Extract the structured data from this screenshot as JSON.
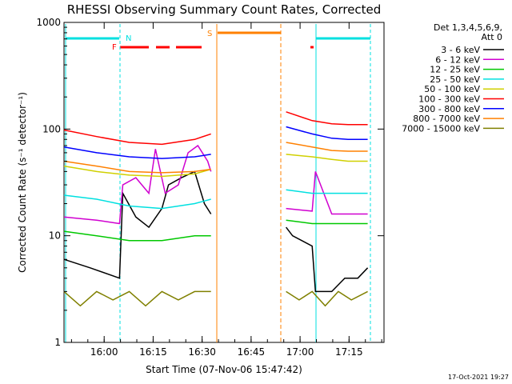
{
  "chart_data": {
    "type": "line",
    "title": "RHESSI Observing Summary Count Rates, Corrected",
    "xlabel": "Start Time (07-Nov-06 15:47:42)",
    "ylabel": "Corrected Count Rate (s⁻¹ detector⁻¹)",
    "y_scale": "log",
    "ylim": [
      1,
      1000
    ],
    "xlim_minutes_after_start": [
      0,
      98
    ],
    "x_tick_labels": [
      "16:00",
      "16:15",
      "16:30",
      "16:45",
      "17:00",
      "17:15"
    ],
    "y_tick_labels": [
      "1",
      "10",
      "100",
      "1000"
    ],
    "legend_header": [
      "Det 1,3,4,5,6,9,",
      "Att 0"
    ],
    "legend_position": "right",
    "timestamp": "17-Oct-2021 19:27",
    "markers": {
      "night_label": "N",
      "flare_label": "F",
      "saa_label": "S"
    },
    "series": [
      {
        "name": "3 - 6 keV",
        "color": "#000000",
        "segments": [
          {
            "x": [
              0,
              8,
              17,
              18,
              22,
              26,
              30,
              32,
              36,
              40,
              43,
              45
            ],
            "y": [
              6,
              5,
              4,
              25,
              15,
              12,
              18,
              30,
              35,
              40,
              20,
              16
            ]
          },
          {
            "x": [
              68,
              70,
              76,
              77,
              82,
              86,
              90,
              93
            ],
            "y": [
              12,
              10,
              8,
              3,
              3,
              4,
              4,
              5
            ]
          }
        ]
      },
      {
        "name": "6 - 12 keV",
        "color": "#d000d0",
        "segments": [
          {
            "x": [
              0,
              10,
              17,
              18,
              22,
              26,
              28,
              31,
              35,
              38,
              41,
              44,
              45
            ],
            "y": [
              15,
              14,
              13,
              30,
              35,
              25,
              65,
              25,
              30,
              60,
              70,
              50,
              40
            ]
          },
          {
            "x": [
              68,
              76,
              77,
              82,
              87,
              93
            ],
            "y": [
              18,
              17,
              40,
              16,
              16,
              16
            ]
          }
        ]
      },
      {
        "name": "12 - 25 keV",
        "color": "#00c800",
        "segments": [
          {
            "x": [
              0,
              10,
              20,
              30,
              40,
              45
            ],
            "y": [
              11,
              10,
              9,
              9,
              10,
              10
            ]
          },
          {
            "x": [
              68,
              76,
              82,
              87,
              93
            ],
            "y": [
              14,
              13,
              13,
              13,
              13
            ]
          }
        ]
      },
      {
        "name": "25 - 50 keV",
        "color": "#00e0e0",
        "segments": [
          {
            "x": [
              0,
              10,
              20,
              30,
              40,
              45
            ],
            "y": [
              24,
              22,
              19,
              18,
              20,
              22
            ]
          },
          {
            "x": [
              68,
              76,
              82,
              87,
              93
            ],
            "y": [
              27,
              25,
              25,
              25,
              25
            ]
          }
        ]
      },
      {
        "name": "50 - 100 keV",
        "color": "#d0d000",
        "segments": [
          {
            "x": [
              0,
              10,
              20,
              30,
              40,
              45
            ],
            "y": [
              45,
              40,
              37,
              36,
              38,
              42
            ]
          },
          {
            "x": [
              68,
              76,
              82,
              87,
              93
            ],
            "y": [
              58,
              55,
              52,
              50,
              50
            ]
          }
        ]
      },
      {
        "name": "100 - 300 keV",
        "color": "#ff0000",
        "segments": [
          {
            "x": [
              0,
              10,
              20,
              30,
              40,
              45
            ],
            "y": [
              98,
              85,
              75,
              72,
              80,
              90
            ]
          },
          {
            "x": [
              68,
              76,
              82,
              87,
              93
            ],
            "y": [
              145,
              120,
              112,
              110,
              110
            ]
          }
        ]
      },
      {
        "name": "300 - 800 keV",
        "color": "#0000ff",
        "segments": [
          {
            "x": [
              0,
              10,
              20,
              30,
              40,
              45
            ],
            "y": [
              68,
              60,
              55,
              53,
              55,
              58
            ]
          },
          {
            "x": [
              68,
              76,
              82,
              87,
              93
            ],
            "y": [
              105,
              90,
              82,
              80,
              80
            ]
          }
        ]
      },
      {
        "name": "800 - 7000 keV",
        "color": "#ff8000",
        "segments": [
          {
            "x": [
              0,
              10,
              20,
              30,
              40,
              45
            ],
            "y": [
              50,
              45,
              40,
              39,
              40,
              42
            ]
          },
          {
            "x": [
              68,
              76,
              82,
              87,
              93
            ],
            "y": [
              75,
              68,
              63,
              62,
              62
            ]
          }
        ]
      },
      {
        "name": "7000 - 15000 keV",
        "color": "#808000",
        "segments": [
          {
            "x": [
              0,
              5,
              10,
              15,
              20,
              25,
              30,
              35,
              40,
              45
            ],
            "y": [
              3,
              2.2,
              3,
              2.5,
              3,
              2.2,
              3,
              2.5,
              3,
              3
            ]
          },
          {
            "x": [
              68,
              72,
              76,
              80,
              84,
              88,
              93
            ],
            "y": [
              3,
              2.5,
              3,
              2.2,
              3,
              2.5,
              3
            ]
          }
        ]
      }
    ]
  }
}
